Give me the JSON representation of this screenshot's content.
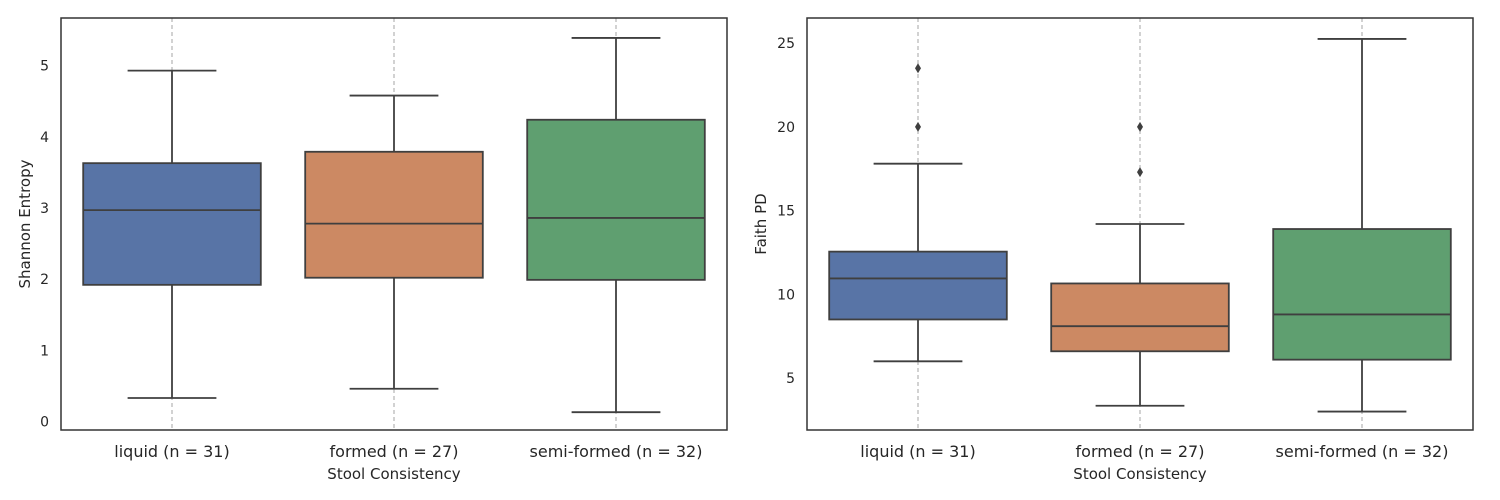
{
  "chart_data": [
    {
      "type": "box",
      "xlabel": "Stool Consistency",
      "ylabel": "Shannon Entropy",
      "ylim": [
        -0.12,
        5.67
      ],
      "yticks": [
        0,
        1,
        2,
        3,
        4,
        5
      ],
      "categories": [
        "liquid (n = 31)",
        "formed (n = 27)",
        "semi-formed (n = 32)"
      ],
      "colors": [
        "#5874a6",
        "#cc8963",
        "#5f9f70"
      ],
      "grid": "x-dashed",
      "boxes": [
        {
          "category": "liquid (n = 31)",
          "whisker_low": 0.33,
          "q1": 1.92,
          "median": 2.97,
          "q3": 3.63,
          "whisker_high": 4.93,
          "outliers": []
        },
        {
          "category": "formed (n = 27)",
          "whisker_low": 0.46,
          "q1": 2.02,
          "median": 2.78,
          "q3": 3.79,
          "whisker_high": 4.58,
          "outliers": []
        },
        {
          "category": "semi-formed (n = 32)",
          "whisker_low": 0.13,
          "q1": 1.99,
          "median": 2.86,
          "q3": 4.24,
          "whisker_high": 5.39,
          "outliers": []
        }
      ]
    },
    {
      "type": "box",
      "xlabel": "Stool Consistency",
      "ylabel": "Faith PD",
      "ylim": [
        1.9,
        26.5
      ],
      "yticks": [
        5,
        10,
        15,
        20,
        25
      ],
      "categories": [
        "liquid (n = 31)",
        "formed (n = 27)",
        "semi-formed (n = 32)"
      ],
      "colors": [
        "#5874a6",
        "#cc8963",
        "#5f9f70"
      ],
      "grid": "x-dashed",
      "boxes": [
        {
          "category": "liquid (n = 31)",
          "whisker_low": 6.0,
          "q1": 8.5,
          "median": 10.95,
          "q3": 12.55,
          "whisker_high": 17.8,
          "outliers": [
            20.0,
            23.5
          ]
        },
        {
          "category": "formed (n = 27)",
          "whisker_low": 3.35,
          "q1": 6.6,
          "median": 8.1,
          "q3": 10.65,
          "whisker_high": 14.2,
          "outliers": [
            17.3,
            20.0
          ]
        },
        {
          "category": "semi-formed (n = 32)",
          "whisker_low": 3.0,
          "q1": 6.1,
          "median": 8.8,
          "q3": 13.9,
          "whisker_high": 25.25,
          "outliers": []
        }
      ]
    }
  ]
}
